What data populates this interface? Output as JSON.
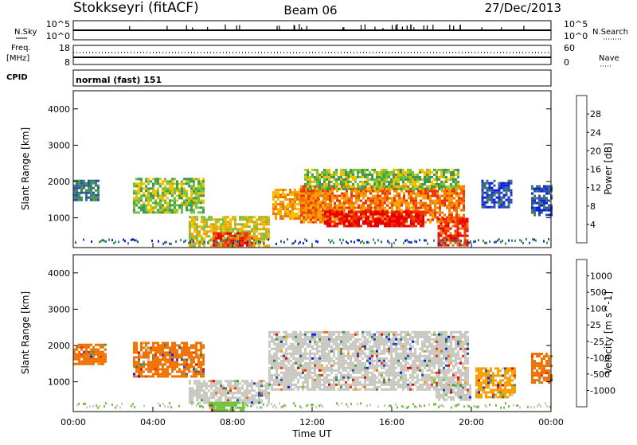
{
  "header": {
    "station": "Stokkseyri (fitACF)",
    "beam": "Beam 06",
    "date": "27/Dec/2013"
  },
  "top_panels": {
    "nsky_label": "N.Sky",
    "nsky_ticks": [
      "10^5",
      "10^0"
    ],
    "nsearch_label": "N.Search",
    "nsearch_ticks": [
      "10^5",
      "10^0"
    ],
    "freq_label": "Freq.",
    "freq_unit": "[MHz]",
    "freq_ticks": [
      "18",
      "8"
    ],
    "nave_label": "Nave",
    "nave_ticks": [
      "60",
      "0"
    ],
    "cpid_label": "CPID",
    "cpid_value": "normal (fast) 151"
  },
  "chart_data": [
    {
      "type": "heatmap",
      "name": "power",
      "xlabel": "",
      "ylabel": "Slant Range [km]",
      "xlim": [
        0,
        24
      ],
      "ylim": [
        180,
        4500
      ],
      "y_ticks": [
        "4000",
        "3000",
        "2000",
        "1000"
      ],
      "y_tick_values": [
        4000,
        3000,
        2000,
        1000
      ],
      "colorbar_label": "Power [dB]",
      "colorbar_ticks": [
        "28",
        "24",
        "20",
        "16",
        "12",
        "8",
        "4"
      ],
      "colorbar_colors": [
        "#0b1fe0",
        "#2e4fa8",
        "#3a7a6a",
        "#3e9a4e",
        "#73c23a",
        "#f0c000",
        "#f5a000",
        "#f07000",
        "#f03000",
        "#e80000"
      ],
      "regions": [
        {
          "t": [
            0.0,
            1.3
          ],
          "r": [
            1500,
            2050
          ],
          "level": 2
        },
        {
          "t": [
            3.0,
            6.6
          ],
          "r": [
            1150,
            2100
          ],
          "level": 4
        },
        {
          "t": [
            5.8,
            9.8
          ],
          "r": [
            250,
            1050
          ],
          "level": 5
        },
        {
          "t": [
            7.0,
            9.0
          ],
          "r": [
            250,
            600
          ],
          "level": 8
        },
        {
          "t": [
            10.0,
            13.0
          ],
          "r": [
            950,
            1800
          ],
          "level": 6
        },
        {
          "t": [
            11.4,
            19.6
          ],
          "r": [
            850,
            1900
          ],
          "level": 7
        },
        {
          "t": [
            12.6,
            17.6
          ],
          "r": [
            800,
            1200
          ],
          "level": 9
        },
        {
          "t": [
            11.6,
            19.4
          ],
          "r": [
            1800,
            2350
          ],
          "level": 4
        },
        {
          "t": [
            18.3,
            19.8
          ],
          "r": [
            250,
            1000
          ],
          "level": 8
        },
        {
          "t": [
            20.5,
            22.0
          ],
          "r": [
            1300,
            2050
          ],
          "level": 1
        },
        {
          "t": [
            23.0,
            24.0
          ],
          "r": [
            1050,
            1900
          ],
          "level": 1
        }
      ]
    },
    {
      "type": "heatmap",
      "name": "velocity",
      "xlabel": "Time UT",
      "ylabel": "Slant Range [km]",
      "xlim": [
        0,
        24
      ],
      "ylim": [
        180,
        4500
      ],
      "x_ticks": [
        "00:00",
        "04:00",
        "08:00",
        "12:00",
        "16:00",
        "20:00",
        "00:00"
      ],
      "x_tick_values": [
        0,
        4,
        8,
        12,
        16,
        20,
        24
      ],
      "y_ticks": [
        "4000",
        "3000",
        "2000",
        "1000"
      ],
      "y_tick_values": [
        4000,
        3000,
        2000,
        1000
      ],
      "colorbar_label": "Velocity [m s^-1]",
      "colorbar_ticks": [
        "1000",
        "500",
        "100",
        "25",
        "-25",
        "-100",
        "-500",
        "-1000"
      ],
      "colorbar_colors": [
        "#0b1fe0",
        "#2e4fa8",
        "#3a7a6a",
        "#3e9a4e",
        "#73c23a",
        "#c8c8c0",
        "#f5a000",
        "#f07000",
        "#f03000",
        "#e80000"
      ],
      "regions": [
        {
          "t": [
            0.0,
            1.6
          ],
          "r": [
            1500,
            2050
          ],
          "color": "#f07000"
        },
        {
          "t": [
            3.0,
            6.6
          ],
          "r": [
            1150,
            2100
          ],
          "color": "#f07000"
        },
        {
          "t": [
            5.8,
            9.8
          ],
          "r": [
            400,
            1050
          ],
          "color": "#c8c8c0"
        },
        {
          "t": [
            6.8,
            8.5
          ],
          "r": [
            250,
            450
          ],
          "color": "#73c23a"
        },
        {
          "t": [
            9.8,
            19.8
          ],
          "r": [
            800,
            2400
          ],
          "color": "#c8c8c0"
        },
        {
          "t": [
            18.2,
            20.0
          ],
          "r": [
            500,
            1000
          ],
          "color": "#c8c8c0"
        },
        {
          "t": [
            20.2,
            22.2
          ],
          "r": [
            600,
            1400
          ],
          "color": "#f5a000"
        },
        {
          "t": [
            23.0,
            24.0
          ],
          "r": [
            1000,
            1800
          ],
          "color": "#f07000"
        }
      ]
    }
  ]
}
